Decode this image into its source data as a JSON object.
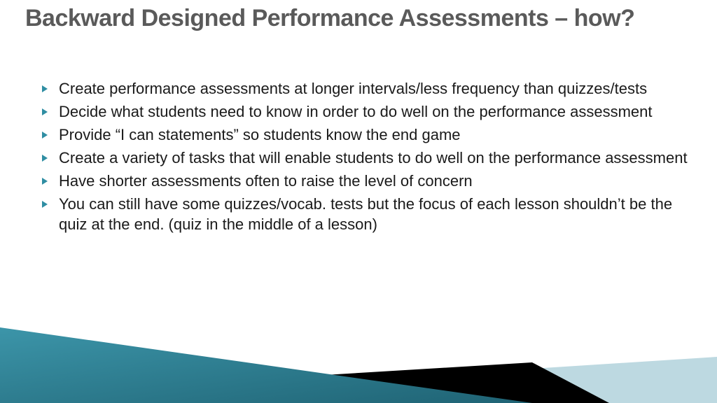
{
  "title": {
    "text": "Backward Designed Performance Assessments – how?",
    "color": "#5a5a5a",
    "fontsize": 34
  },
  "bullets": {
    "fontsize": 22,
    "text_color": "#1a1a1a",
    "marker_color": "#2f8ea3",
    "items": [
      "Create performance assessments at longer intervals/less frequency than quizzes/tests",
      "Decide what students need to know in order to do well on the performance assessment",
      "Provide “I can statements” so students know the end game",
      "Create a variety of tasks that will enable students to do well on the performance assessment",
      "Have shorter assessments often to raise the level of concern",
      "You can still have some quizzes/vocab. tests but the focus of each lesson shouldn’t be the quiz at the end.  (quiz in the middle of a lesson)"
    ]
  },
  "decoration": {
    "teal_dark": "#2b7d91",
    "teal_light": "#bdd9e1",
    "black": "#000000"
  }
}
